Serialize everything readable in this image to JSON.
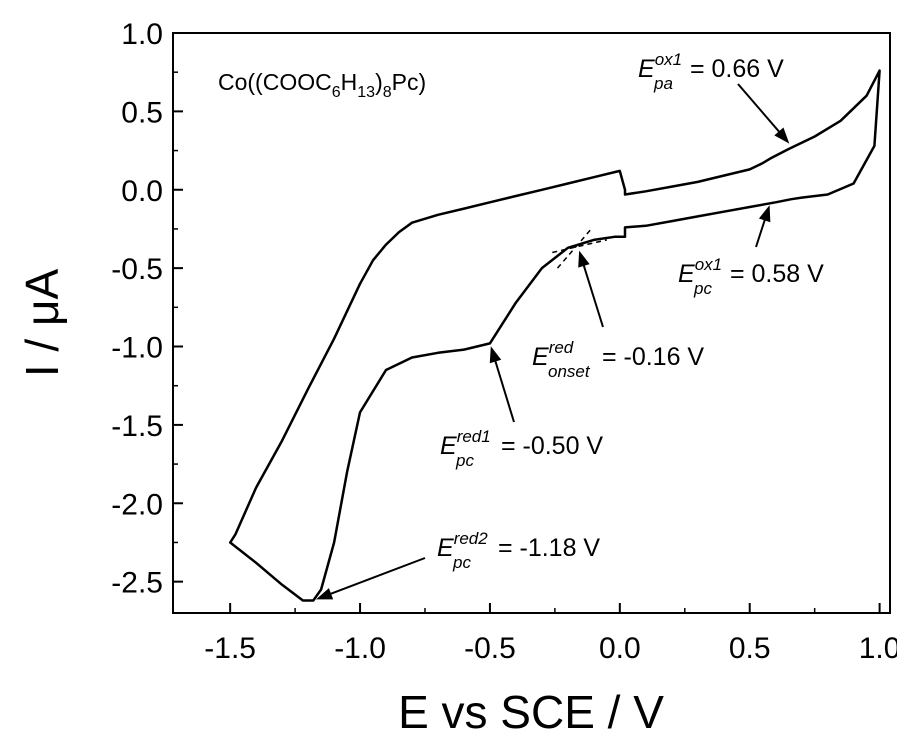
{
  "chart_data": {
    "type": "line",
    "title": "",
    "compound_label": {
      "prefix": "Co((COOC",
      "sub1": "6",
      "mid1": "H",
      "sub2": "13",
      "mid2": ")",
      "sub3": "8",
      "suffix": "Pc)"
    },
    "xlabel": "E vs SCE / V",
    "ylabel": "I / μA",
    "xlim": [
      -1.72,
      1.04
    ],
    "ylim": [
      -2.7,
      1.0
    ],
    "xticks": [
      -1.5,
      -1.0,
      -0.5,
      0.0,
      0.5,
      1.0
    ],
    "xtick_labels": [
      "-1.5",
      "-1.0",
      "-0.5",
      "0.0",
      "0.5",
      "1.0"
    ],
    "yticks": [
      1.0,
      0.5,
      0.0,
      -0.5,
      -1.0,
      -1.5,
      -2.0,
      -2.5
    ],
    "ytick_labels": [
      "1.0",
      "0.5",
      "0.0",
      "-0.5",
      "-1.0",
      "-1.5",
      "-2.0",
      "-2.5"
    ],
    "grid": false,
    "series": [
      {
        "x": [
          0.0,
          -0.02,
          -0.1,
          -0.2,
          -0.3,
          -0.4,
          -0.5,
          -0.6,
          -0.7,
          -0.8,
          -0.9,
          -1.0,
          -1.05,
          -1.1,
          -1.15,
          -1.18,
          -1.22,
          -1.3,
          -1.4,
          -1.5,
          -1.48,
          -1.4,
          -1.3,
          -1.2,
          -1.1,
          -1.0,
          -0.95,
          -0.9,
          -0.85,
          -0.8,
          -0.7,
          -0.6,
          -0.5,
          -0.4,
          -0.3,
          -0.2,
          -0.1,
          0.0,
          0.02,
          0.02,
          0.1,
          0.2,
          0.3,
          0.4,
          0.5,
          0.55,
          0.58,
          0.65,
          0.75,
          0.85,
          0.95,
          1.0,
          0.98,
          0.9,
          0.8,
          0.7,
          0.66,
          0.6,
          0.5,
          0.4,
          0.3,
          0.2,
          0.1,
          0.02,
          0.02,
          0.0
        ],
        "y": [
          -0.3,
          -0.3,
          -0.32,
          -0.37,
          -0.5,
          -0.72,
          -0.98,
          -1.02,
          -1.04,
          -1.07,
          -1.15,
          -1.42,
          -1.8,
          -2.25,
          -2.55,
          -2.62,
          -2.62,
          -2.52,
          -2.38,
          -2.25,
          -2.2,
          -1.9,
          -1.6,
          -1.27,
          -0.95,
          -0.6,
          -0.45,
          -0.35,
          -0.27,
          -0.21,
          -0.16,
          -0.12,
          -0.08,
          -0.04,
          0.0,
          0.04,
          0.08,
          0.12,
          0.0,
          -0.03,
          -0.01,
          0.02,
          0.05,
          0.09,
          0.13,
          0.17,
          0.2,
          0.26,
          0.34,
          0.44,
          0.6,
          0.76,
          0.28,
          0.04,
          -0.03,
          -0.05,
          -0.06,
          -0.08,
          -0.11,
          -0.14,
          -0.17,
          -0.2,
          -0.23,
          -0.24,
          -0.3,
          -0.3
        ]
      }
    ],
    "annotations": [
      {
        "base": "E",
        "sup": "ox1",
        "sub": "pa",
        "value": " = 0.66 V",
        "x": 0.66,
        "y": 0.28
      },
      {
        "base": "E",
        "sup": "ox1",
        "sub": "pc",
        "value": " = 0.58 V",
        "x": 0.58,
        "y": -0.08
      },
      {
        "base": "E",
        "sup": "red",
        "sub": "onset",
        "value": " = -0.16 V",
        "x": -0.16,
        "y": -0.37
      },
      {
        "base": "E",
        "sup": "red1",
        "sub": "pc",
        "value": " = -0.50 V",
        "x": -0.5,
        "y": -0.98
      },
      {
        "base": "E",
        "sup": "red2",
        "sub": "pc",
        "value": " = -1.18 V",
        "x": -1.18,
        "y": -2.62
      }
    ]
  }
}
